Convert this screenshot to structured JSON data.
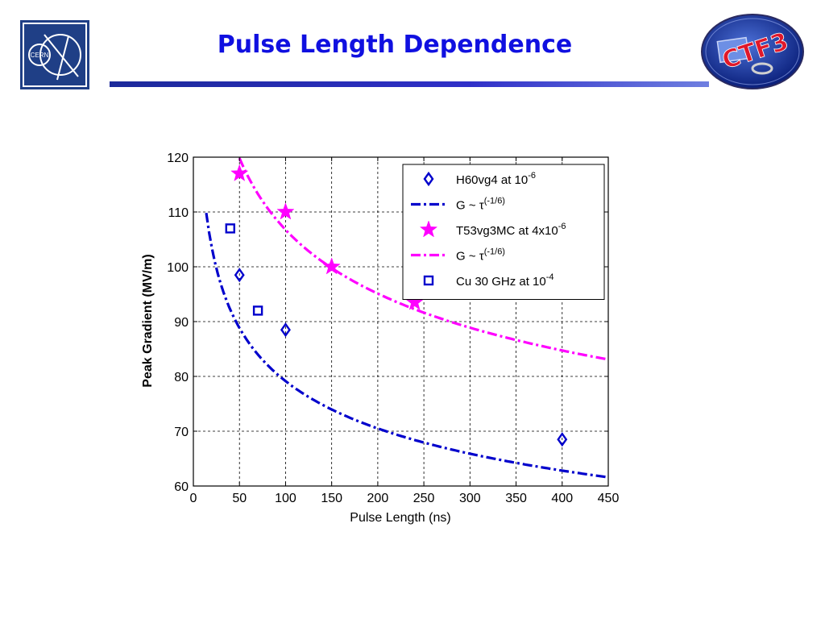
{
  "header": {
    "title": "Pulse Length Dependence",
    "cern_logo_text": "CERN",
    "ctf_logo_text": "CTF3"
  },
  "colors": {
    "blue": "#0000cc",
    "magenta": "#ff00ff",
    "title": "#1010e0",
    "rule": "#2030b0"
  },
  "chart_data": {
    "type": "scatter",
    "xlabel": "Pulse Length (ns)",
    "ylabel": "Peak Gradient (MV/m)",
    "xlim": [
      0,
      450
    ],
    "ylim": [
      60,
      120
    ],
    "xticks": [
      0,
      50,
      100,
      150,
      200,
      250,
      300,
      350,
      400,
      450
    ],
    "yticks": [
      60,
      70,
      80,
      90,
      100,
      110,
      120
    ],
    "grid": true,
    "legend_position": "top-right",
    "series": [
      {
        "name": "H60vg4 at 10",
        "name_sup": "-6",
        "kind": "points",
        "marker": "diamond",
        "color": "#0000cc",
        "x": [
          50,
          100,
          400
        ],
        "y": [
          98.5,
          88.5,
          68.5
        ]
      },
      {
        "name": "G ~ τ",
        "name_sup": "(-1/6)",
        "kind": "curve",
        "color": "#0000cc",
        "a": 170.5,
        "exponent": -0.16667,
        "x_start": 14,
        "x_end": 450
      },
      {
        "name": "T53vg3MC at 4x10",
        "name_sup": "-6",
        "kind": "points",
        "marker": "star",
        "color": "#ff00ff",
        "x": [
          50,
          100,
          150,
          240
        ],
        "y": [
          117,
          110,
          100,
          93.5
        ]
      },
      {
        "name": "G ~ τ",
        "name_sup": "(-1/6)",
        "kind": "curve",
        "color": "#ff00ff",
        "a": 230,
        "exponent": -0.16667,
        "x_start": 50,
        "x_end": 450
      },
      {
        "name": "Cu 30 GHz at 10",
        "name_sup": "-4",
        "kind": "points",
        "marker": "square",
        "color": "#0000cc",
        "x": [
          40,
          70
        ],
        "y": [
          107,
          92
        ]
      }
    ]
  }
}
